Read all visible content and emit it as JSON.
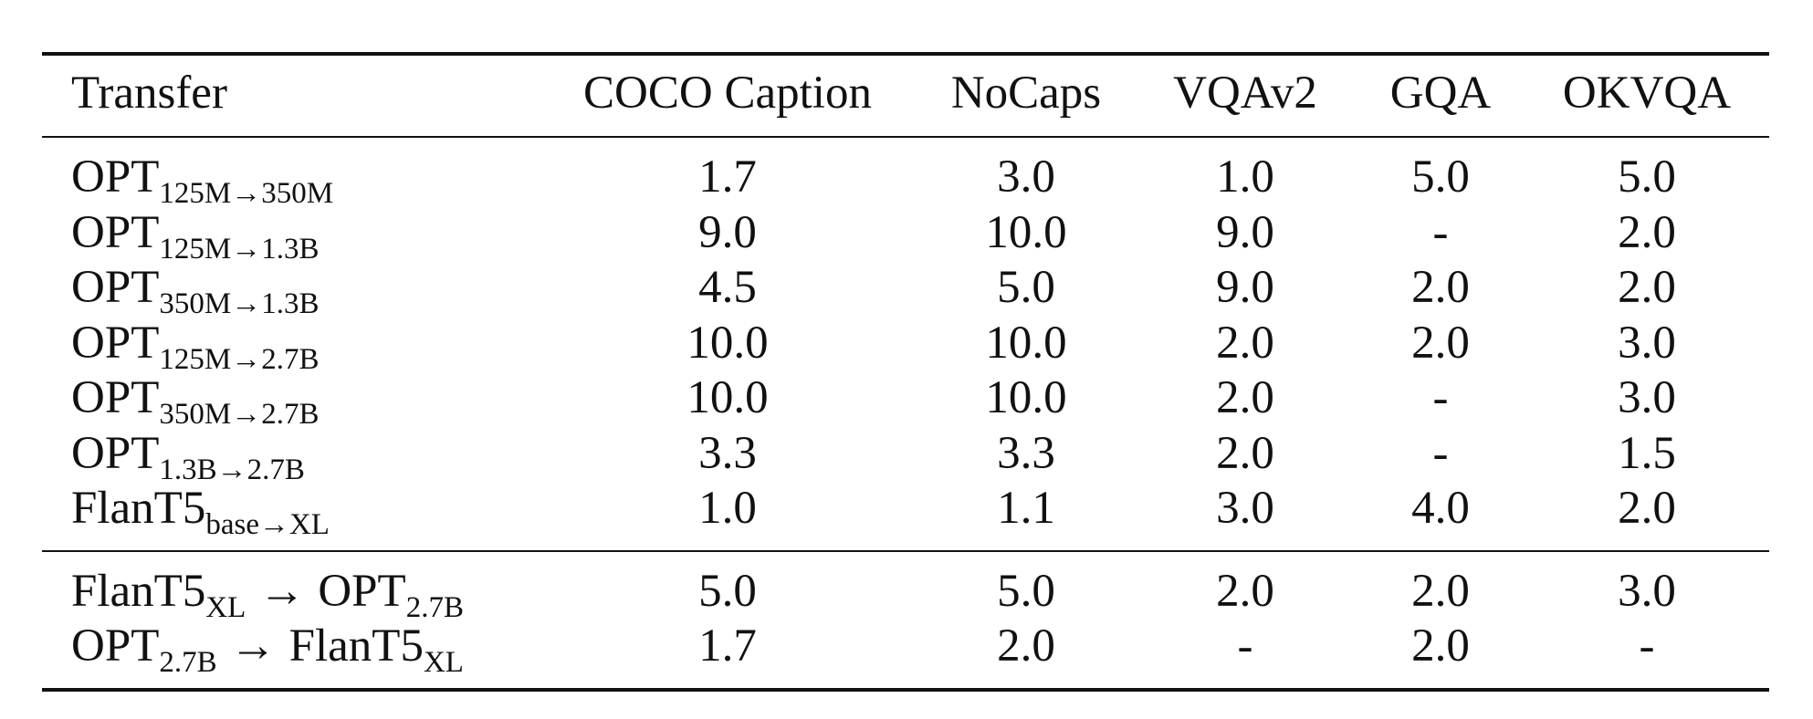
{
  "header": {
    "transfer": "Transfer",
    "columns": [
      "COCO Caption",
      "NoCaps",
      "VQAv2",
      "GQA",
      "OKVQA"
    ]
  },
  "rows": [
    {
      "base": "OPT",
      "sub": "125M→350M",
      "values": [
        "1.7",
        "3.0",
        "1.0",
        "5.0",
        "5.0"
      ]
    },
    {
      "base": "OPT",
      "sub": "125M→1.3B",
      "values": [
        "9.0",
        "10.0",
        "9.0",
        "-",
        "2.0"
      ]
    },
    {
      "base": "OPT",
      "sub": "350M→1.3B",
      "values": [
        "4.5",
        "5.0",
        "9.0",
        "2.0",
        "2.0"
      ]
    },
    {
      "base": "OPT",
      "sub": "125M→2.7B",
      "values": [
        "10.0",
        "10.0",
        "2.0",
        "2.0",
        "3.0"
      ]
    },
    {
      "base": "OPT",
      "sub": "350M→2.7B",
      "values": [
        "10.0",
        "10.0",
        "2.0",
        "-",
        "3.0"
      ]
    },
    {
      "base": "OPT",
      "sub": "1.3B→2.7B",
      "values": [
        "3.3",
        "3.3",
        "2.0",
        "-",
        "1.5"
      ]
    },
    {
      "base": "FlanT5",
      "sub": "base→XL",
      "values": [
        "1.0",
        "1.1",
        "3.0",
        "4.0",
        "2.0"
      ]
    }
  ],
  "cross_rows": [
    {
      "from_base": "FlanT5",
      "from_sub": "XL",
      "arrow": "→",
      "to_base": "OPT",
      "to_sub": "2.7B",
      "values": [
        "5.0",
        "5.0",
        "2.0",
        "2.0",
        "3.0"
      ]
    },
    {
      "from_base": "OPT",
      "from_sub": "2.7B",
      "arrow": "→",
      "to_base": "FlanT5",
      "to_sub": "XL",
      "values": [
        "1.7",
        "2.0",
        "-",
        "2.0",
        "-"
      ]
    }
  ]
}
